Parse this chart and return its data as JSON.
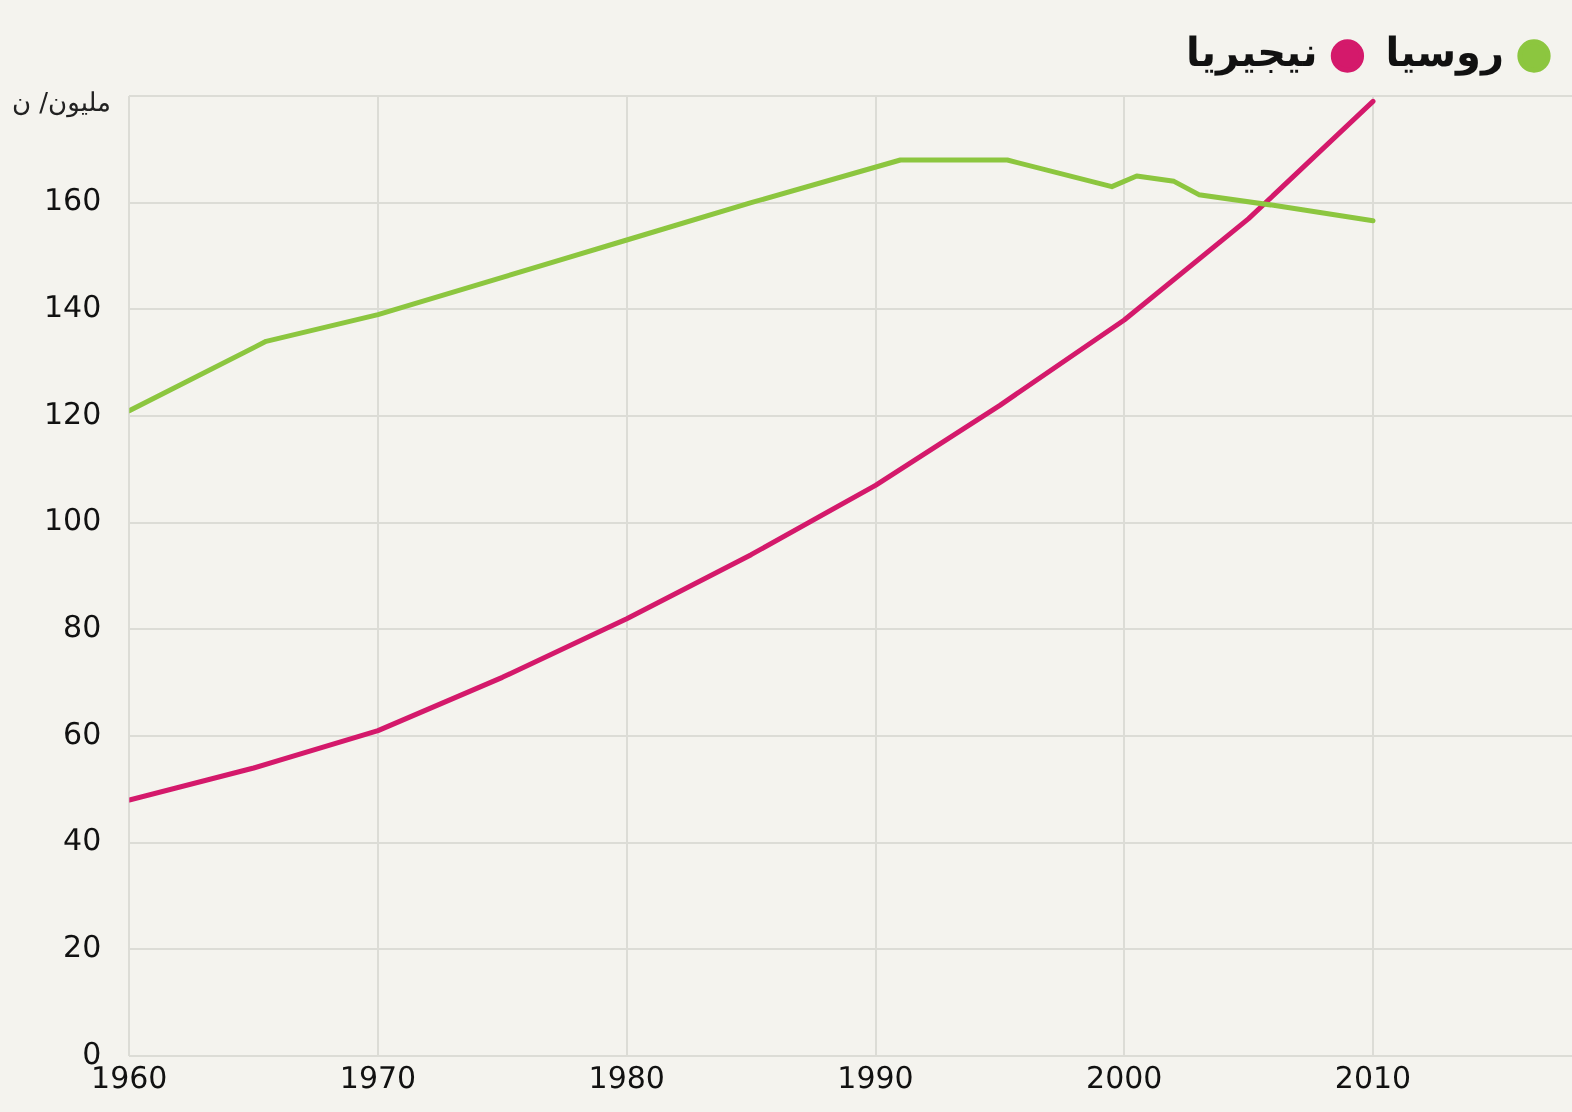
{
  "chart_data": {
    "type": "line",
    "ylabel": "مليون/ ن",
    "x": [
      1960,
      1965,
      1970,
      1975,
      1980,
      1985,
      1990,
      1995,
      2000,
      2005,
      2010
    ],
    "series": [
      {
        "name": "روسيا",
        "color": "#8cc63f",
        "x": [
          1960,
          1965.5,
          1970,
          1975,
          1980,
          1985,
          1991,
          1995.3,
          1999.5,
          2000.5,
          2002,
          2003,
          2006,
          2010
        ],
        "values": [
          121,
          134,
          139,
          146,
          153,
          160,
          168,
          168,
          163,
          165,
          164,
          161.5,
          159.5,
          156.6
        ]
      },
      {
        "name": "نيجيريا",
        "color": "#d4196b",
        "values": [
          48,
          54,
          61,
          71,
          82,
          94,
          107,
          122,
          138,
          157,
          179
        ]
      }
    ],
    "xlim": [
      1960,
      2018
    ],
    "xticks": [
      1960,
      1970,
      1980,
      1990,
      2000,
      2010
    ],
    "ylim": [
      0,
      180
    ],
    "yticks": [
      0,
      20,
      40,
      60,
      80,
      100,
      120,
      140,
      160,
      {
        "value": 180,
        "label": null
      }
    ],
    "grid": true,
    "legend": "top right",
    "marker": "none",
    "line_style": "solid"
  }
}
